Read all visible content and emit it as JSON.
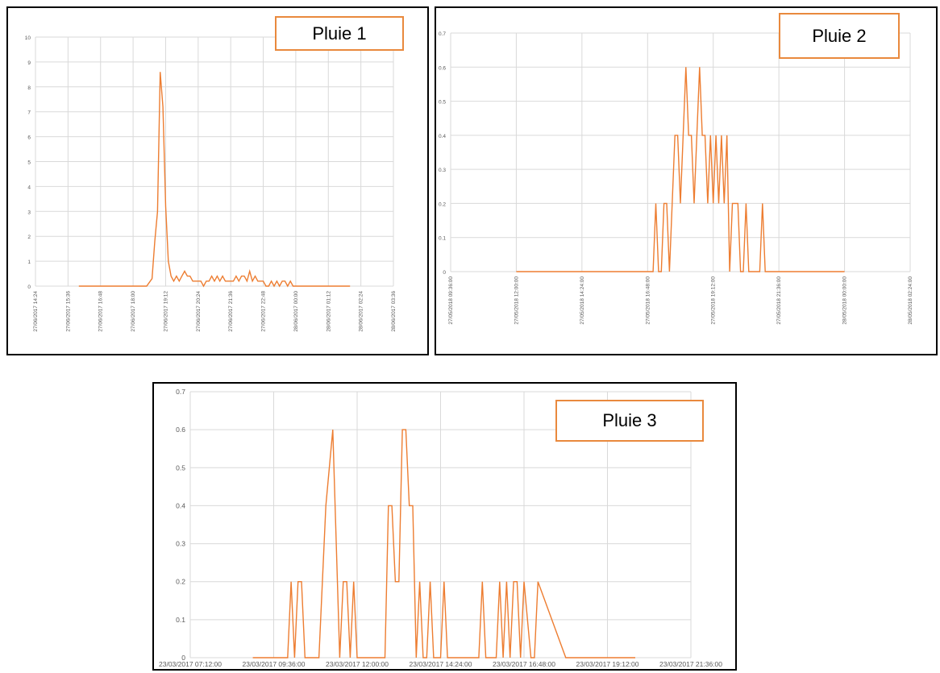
{
  "colors": {
    "line": "#ED7D31",
    "grid": "#d9d9d9",
    "tick_text": "#595959",
    "box_border": "#E9893D"
  },
  "chart_data": [
    {
      "type": "line",
      "title": "Pluie 1",
      "ylim": [
        0,
        10
      ],
      "yticks": [
        0,
        1,
        2,
        3,
        4,
        5,
        6,
        7,
        8,
        9,
        10
      ],
      "xlim": [
        "27/06/2017 14:24",
        "28/06/2017 03:36"
      ],
      "xtick_labels": [
        "27/06/2017 14:24",
        "27/06/2017 15:36",
        "27/06/2017 16:48",
        "27/06/2017 18:00",
        "27/06/2017 19:12",
        "27/06/2017 20:24",
        "27/06/2017 21:36",
        "27/06/2017 22:48",
        "28/06/2017 00:00",
        "28/06/2017 01:12",
        "28/06/2017 02:24",
        "28/06/2017 03:36"
      ],
      "grid": true,
      "x": [
        "27/06/2017 16:00",
        "27/06/2017 16:30",
        "27/06/2017 17:00",
        "27/06/2017 17:30",
        "27/06/2017 18:00",
        "27/06/2017 18:30",
        "27/06/2017 18:42",
        "27/06/2017 18:48",
        "27/06/2017 18:54",
        "27/06/2017 19:00",
        "27/06/2017 19:06",
        "27/06/2017 19:12",
        "27/06/2017 19:18",
        "27/06/2017 19:24",
        "27/06/2017 19:30",
        "27/06/2017 19:36",
        "27/06/2017 19:42",
        "27/06/2017 19:48",
        "27/06/2017 19:54",
        "27/06/2017 20:00",
        "27/06/2017 20:06",
        "27/06/2017 20:12",
        "27/06/2017 20:18",
        "27/06/2017 20:24",
        "27/06/2017 20:30",
        "27/06/2017 20:36",
        "27/06/2017 20:42",
        "27/06/2017 20:48",
        "27/06/2017 20:54",
        "27/06/2017 21:00",
        "27/06/2017 21:06",
        "27/06/2017 21:12",
        "27/06/2017 21:18",
        "27/06/2017 21:24",
        "27/06/2017 21:30",
        "27/06/2017 21:36",
        "27/06/2017 21:42",
        "27/06/2017 21:48",
        "27/06/2017 21:54",
        "27/06/2017 22:00",
        "27/06/2017 22:06",
        "27/06/2017 22:12",
        "27/06/2017 22:18",
        "27/06/2017 22:24",
        "27/06/2017 22:30",
        "27/06/2017 22:36",
        "27/06/2017 22:42",
        "27/06/2017 22:48",
        "27/06/2017 22:54",
        "27/06/2017 23:00",
        "27/06/2017 23:06",
        "27/06/2017 23:12",
        "27/06/2017 23:18",
        "27/06/2017 23:24",
        "27/06/2017 23:30",
        "27/06/2017 23:36",
        "27/06/2017 23:42",
        "27/06/2017 23:48",
        "27/06/2017 23:54",
        "28/06/2017 00:00",
        "28/06/2017 00:30",
        "28/06/2017 01:00",
        "28/06/2017 01:30",
        "28/06/2017 02:00"
      ],
      "y": [
        0,
        0,
        0,
        0,
        0,
        0,
        0.3,
        1.8,
        3,
        8.6,
        7.2,
        3.2,
        1,
        0.4,
        0.2,
        0.4,
        0.2,
        0.4,
        0.6,
        0.4,
        0.4,
        0.2,
        0.2,
        0.2,
        0.2,
        0,
        0.2,
        0.2,
        0.4,
        0.2,
        0.4,
        0.2,
        0.4,
        0.2,
        0.2,
        0.2,
        0.2,
        0.4,
        0.2,
        0.4,
        0.4,
        0.2,
        0.6,
        0.2,
        0.4,
        0.2,
        0.2,
        0.2,
        0,
        0,
        0.2,
        0,
        0.2,
        0,
        0.2,
        0.2,
        0,
        0.2,
        0,
        0,
        0,
        0,
        0,
        0
      ]
    },
    {
      "type": "line",
      "title": "Pluie 2",
      "ylim": [
        0,
        0.7
      ],
      "yticks": [
        0,
        0.1,
        0.2,
        0.3,
        0.4,
        0.5,
        0.6,
        0.7
      ],
      "xlim": [
        "27/05/2018 09:36:00",
        "28/05/2018 02:24:00"
      ],
      "xtick_labels": [
        "27/05/2018 09:36:00",
        "27/05/2018 12:00:00",
        "27/05/2018 14:24:00",
        "27/05/2018 16:48:00",
        "27/05/2018 19:12:00",
        "27/05/2018 21:36:00",
        "28/05/2018 00:00:00",
        "28/05/2018 02:24:00"
      ],
      "grid": true,
      "x": [
        "27/05/2018 12:00:00",
        "27/05/2018 14:00:00",
        "27/05/2018 16:00:00",
        "27/05/2018 17:00:00",
        "27/05/2018 17:06:00",
        "27/05/2018 17:12:00",
        "27/05/2018 17:18:00",
        "27/05/2018 17:24:00",
        "27/05/2018 17:30:00",
        "27/05/2018 17:36:00",
        "27/05/2018 17:42:00",
        "27/05/2018 17:48:00",
        "27/05/2018 17:54:00",
        "27/05/2018 18:00:00",
        "27/05/2018 18:06:00",
        "27/05/2018 18:12:00",
        "27/05/2018 18:18:00",
        "27/05/2018 18:24:00",
        "27/05/2018 18:30:00",
        "27/05/2018 18:36:00",
        "27/05/2018 18:42:00",
        "27/05/2018 18:48:00",
        "27/05/2018 18:54:00",
        "27/05/2018 19:00:00",
        "27/05/2018 19:06:00",
        "27/05/2018 19:12:00",
        "27/05/2018 19:18:00",
        "27/05/2018 19:24:00",
        "27/05/2018 19:30:00",
        "27/05/2018 19:36:00",
        "27/05/2018 19:42:00",
        "27/05/2018 19:48:00",
        "27/05/2018 19:54:00",
        "27/05/2018 20:00:00",
        "27/05/2018 20:06:00",
        "27/05/2018 20:12:00",
        "27/05/2018 20:18:00",
        "27/05/2018 20:24:00",
        "27/05/2018 20:30:00",
        "27/05/2018 20:36:00",
        "27/05/2018 20:42:00",
        "27/05/2018 20:48:00",
        "27/05/2018 20:54:00",
        "27/05/2018 21:00:00",
        "27/05/2018 21:06:00",
        "27/05/2018 21:12:00",
        "27/05/2018 22:00:00",
        "27/05/2018 23:00:00",
        "28/05/2018 00:00:00"
      ],
      "y": [
        0,
        0,
        0,
        0,
        0.2,
        0,
        0,
        0.2,
        0.2,
        0,
        0.2,
        0.4,
        0.4,
        0.2,
        0.4,
        0.6,
        0.4,
        0.4,
        0.2,
        0.4,
        0.6,
        0.4,
        0.4,
        0.2,
        0.4,
        0.2,
        0.4,
        0.2,
        0.4,
        0.2,
        0.4,
        0,
        0.2,
        0.2,
        0.2,
        0,
        0,
        0.2,
        0,
        0,
        0,
        0,
        0,
        0.2,
        0,
        0,
        0,
        0,
        0
      ]
    },
    {
      "type": "line",
      "title": "Pluie 3",
      "ylim": [
        0,
        0.7
      ],
      "yticks": [
        0,
        0.1,
        0.2,
        0.3,
        0.4,
        0.5,
        0.6,
        0.7
      ],
      "xlim": [
        "23/03/2017 07:12:00",
        "23/03/2017 21:36:00"
      ],
      "xtick_labels": [
        "23/03/2017 07:12:00",
        "23/03/2017 09:36:00",
        "23/03/2017 12:00:00",
        "23/03/2017 14:24:00",
        "23/03/2017 16:48:00",
        "23/03/2017 19:12:00",
        "23/03/2017 21:36:00"
      ],
      "grid": true,
      "x": [
        "23/03/2017 09:00:00",
        "23/03/2017 10:00:00",
        "23/03/2017 10:06:00",
        "23/03/2017 10:12:00",
        "23/03/2017 10:18:00",
        "23/03/2017 10:24:00",
        "23/03/2017 10:30:00",
        "23/03/2017 10:54:00",
        "23/03/2017 11:06:00",
        "23/03/2017 11:18:00",
        "23/03/2017 11:30:00",
        "23/03/2017 11:36:00",
        "23/03/2017 11:42:00",
        "23/03/2017 11:48:00",
        "23/03/2017 11:54:00",
        "23/03/2017 12:00:00",
        "23/03/2017 12:48:00",
        "23/03/2017 12:54:00",
        "23/03/2017 13:00:00",
        "23/03/2017 13:06:00",
        "23/03/2017 13:12:00",
        "23/03/2017 13:18:00",
        "23/03/2017 13:24:00",
        "23/03/2017 13:30:00",
        "23/03/2017 13:36:00",
        "23/03/2017 13:42:00",
        "23/03/2017 13:48:00",
        "23/03/2017 13:54:00",
        "23/03/2017 14:00:00",
        "23/03/2017 14:06:00",
        "23/03/2017 14:12:00",
        "23/03/2017 14:18:00",
        "23/03/2017 14:24:00",
        "23/03/2017 14:30:00",
        "23/03/2017 14:36:00",
        "23/03/2017 14:42:00",
        "23/03/2017 15:30:00",
        "23/03/2017 15:36:00",
        "23/03/2017 15:42:00",
        "23/03/2017 16:00:00",
        "23/03/2017 16:06:00",
        "23/03/2017 16:12:00",
        "23/03/2017 16:18:00",
        "23/03/2017 16:24:00",
        "23/03/2017 16:30:00",
        "23/03/2017 16:36:00",
        "23/03/2017 16:42:00",
        "23/03/2017 16:48:00",
        "23/03/2017 17:00:00",
        "23/03/2017 17:06:00",
        "23/03/2017 17:12:00",
        "23/03/2017 18:00:00",
        "23/03/2017 19:00:00",
        "23/03/2017 20:00:00"
      ],
      "y": [
        0,
        0,
        0.2,
        0,
        0.2,
        0.2,
        0,
        0,
        0.4,
        0.6,
        0,
        0.2,
        0.2,
        0,
        0.2,
        0,
        0,
        0.4,
        0.4,
        0.2,
        0.2,
        0.6,
        0.6,
        0.4,
        0.4,
        0,
        0.2,
        0,
        0,
        0.2,
        0,
        0,
        0,
        0.2,
        0,
        0,
        0,
        0.2,
        0,
        0,
        0.2,
        0,
        0.2,
        0,
        0.2,
        0.2,
        0,
        0.2,
        0,
        0,
        0.2,
        0,
        0,
        0
      ]
    }
  ]
}
